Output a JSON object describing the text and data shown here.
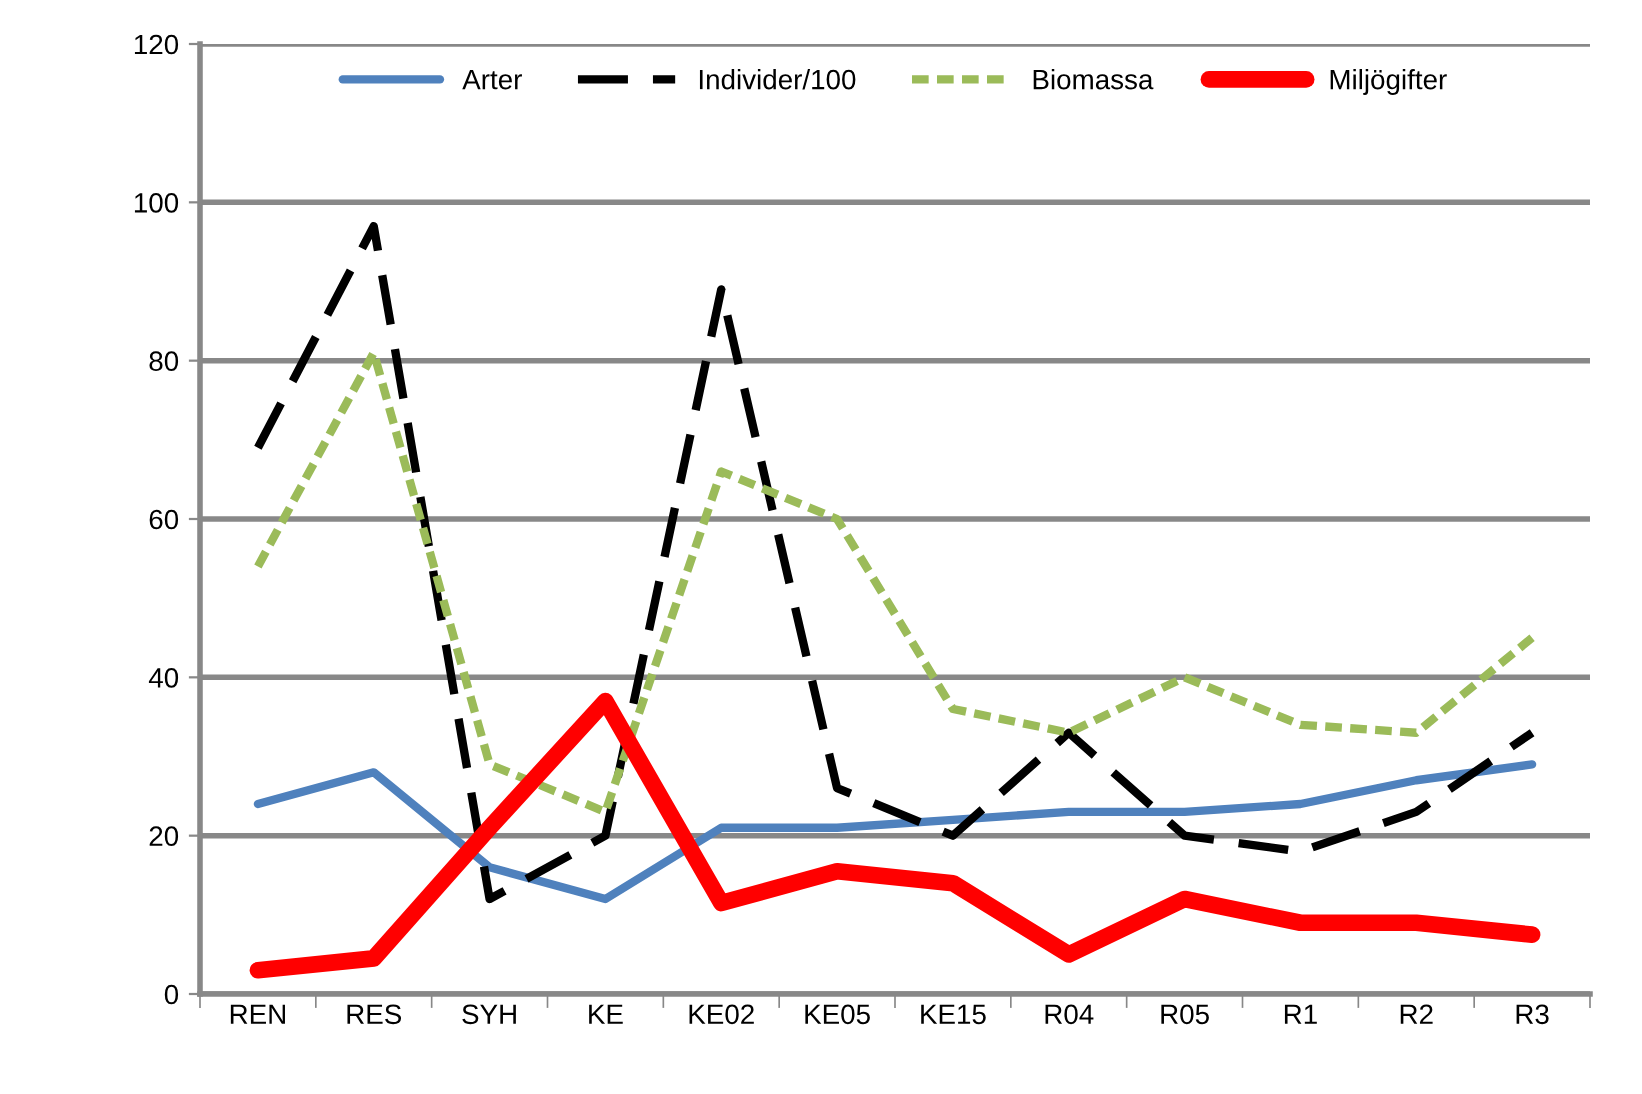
{
  "chart_data": {
    "type": "line",
    "categories": [
      "REN",
      "RES",
      "SYH",
      "KE",
      "KE02",
      "KE05",
      "KE15",
      "R04",
      "R05",
      "R1",
      "R2",
      "R3"
    ],
    "series": [
      {
        "name": "Arter",
        "color": "#4f81bd",
        "line_style": "solid",
        "values": [
          24,
          28,
          16,
          12,
          21,
          21,
          22,
          23,
          23,
          24,
          27,
          29
        ]
      },
      {
        "name": "Individer/100",
        "color": "#000000",
        "line_style": "dashed",
        "values": [
          69,
          97,
          12,
          20,
          89,
          26,
          20,
          33,
          20,
          18,
          23,
          33
        ]
      },
      {
        "name": "Biomassa",
        "color": "#9bbb59",
        "line_style": "dotted",
        "values": [
          54,
          81,
          29,
          23,
          66,
          60,
          36,
          33,
          40,
          34,
          33,
          45
        ]
      },
      {
        "name": "Miljögifter",
        "color": "#ff0000",
        "line_style": "solid",
        "values": [
          3,
          4.5,
          21,
          37,
          11.5,
          15.5,
          14,
          5,
          12,
          9,
          9,
          7.5
        ]
      }
    ],
    "ylim": [
      0,
      120
    ],
    "yticks": [
      0,
      20,
      40,
      60,
      80,
      100,
      120
    ],
    "grid": "y",
    "legend": "top",
    "marker": "none"
  }
}
